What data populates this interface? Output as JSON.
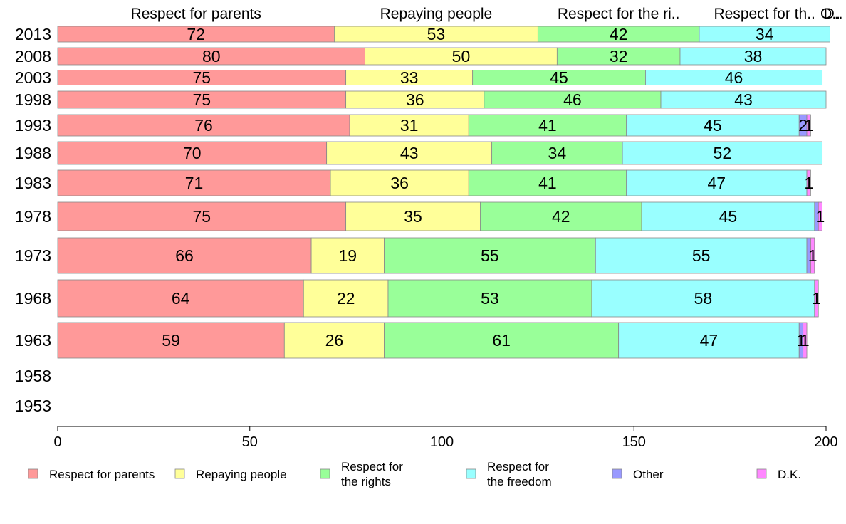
{
  "chart_data": {
    "type": "bar",
    "orientation": "horizontal",
    "stacked": true,
    "categories": [
      "2013",
      "2008",
      "2003",
      "1998",
      "1993",
      "1988",
      "1983",
      "1978",
      "1973",
      "1968",
      "1963",
      "1958",
      "1953"
    ],
    "series": [
      {
        "name": "Respect for parents",
        "color": "#ff9999",
        "values": [
          72,
          80,
          75,
          75,
          76,
          70,
          71,
          75,
          66,
          64,
          59,
          null,
          null
        ]
      },
      {
        "name": "Repaying people",
        "color": "#ffff99",
        "values": [
          53,
          50,
          33,
          36,
          31,
          43,
          36,
          35,
          19,
          22,
          26,
          null,
          null
        ]
      },
      {
        "name": "Respect for the rights",
        "color": "#99ff99",
        "values": [
          42,
          32,
          45,
          46,
          41,
          34,
          41,
          42,
          55,
          53,
          61,
          null,
          null
        ]
      },
      {
        "name": "Respect for the freedom",
        "color": "#99ffff",
        "values": [
          34,
          38,
          46,
          43,
          45,
          52,
          47,
          45,
          55,
          58,
          47,
          null,
          null
        ]
      },
      {
        "name": "Other",
        "color": "#9999ff",
        "values": [
          0,
          0,
          0,
          0,
          2,
          0,
          0,
          1,
          1,
          0,
          1,
          null,
          null
        ]
      },
      {
        "name": "D.K.",
        "color": "#ff88ff",
        "values": [
          0,
          0,
          0,
          0,
          1,
          0,
          1,
          1,
          1,
          1,
          1,
          null,
          null
        ]
      }
    ],
    "top_labels": [
      "Respect for parents",
      "Repaying people",
      "Respect for the ri..",
      "Respect for th..",
      "O..",
      "D.."
    ],
    "data_labels": [
      [
        "72",
        "53",
        "42",
        "34",
        "",
        ""
      ],
      [
        "80",
        "50",
        "32",
        "38",
        "",
        ""
      ],
      [
        "75",
        "33",
        "45",
        "46",
        "",
        ""
      ],
      [
        "75",
        "36",
        "46",
        "43",
        "",
        ""
      ],
      [
        "76",
        "31",
        "41",
        "45",
        "2",
        "1"
      ],
      [
        "70",
        "43",
        "34",
        "52",
        "",
        ""
      ],
      [
        "71",
        "36",
        "41",
        "47",
        "",
        "1"
      ],
      [
        "75",
        "35",
        "42",
        "45",
        "",
        "1"
      ],
      [
        "66",
        "19",
        "55",
        "55",
        "",
        "1"
      ],
      [
        "64",
        "22",
        "53",
        "58",
        "",
        "1"
      ],
      [
        "59",
        "26",
        "61",
        "47",
        "1",
        "1"
      ],
      [
        "",
        "",
        "",
        "",
        "",
        ""
      ],
      [
        "",
        "",
        "",
        "",
        "",
        ""
      ]
    ],
    "legend": {
      "position": "bottom",
      "items": [
        {
          "lines": [
            "Respect for parents"
          ],
          "color": "#ff9999"
        },
        {
          "lines": [
            "Repaying people"
          ],
          "color": "#ffff99"
        },
        {
          "lines": [
            "Respect for",
            "the rights"
          ],
          "color": "#99ff99"
        },
        {
          "lines": [
            "Respect for",
            "the freedom"
          ],
          "color": "#99ffff"
        },
        {
          "lines": [
            "Other"
          ],
          "color": "#9999ff"
        },
        {
          "lines": [
            "D.K."
          ],
          "color": "#ff88ff"
        }
      ]
    },
    "xlim": [
      0,
      200
    ],
    "xticks": [
      0,
      50,
      100,
      150,
      200
    ],
    "xlabel": "",
    "ylabel": "",
    "grid": false
  }
}
